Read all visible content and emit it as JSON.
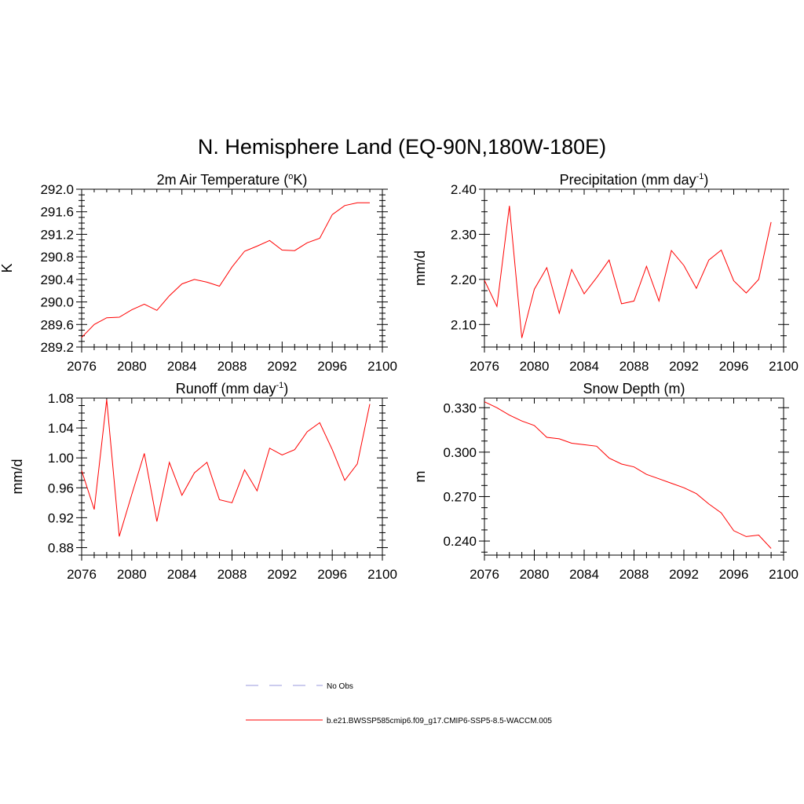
{
  "figure": {
    "title": "N. Hemisphere Land (EQ-90N,180W-180E)"
  },
  "legend": {
    "entries": [
      {
        "label": "No Obs",
        "color": "#9999dd",
        "dash": true
      },
      {
        "label": "b.e21.BWSSP585cmip6.f09_g17.CMIP6-SSP5-8.5-WACCM.005",
        "color": "#ff0000",
        "dash": false
      }
    ]
  },
  "chart_data": [
    {
      "type": "line",
      "title": "2m Air Temperature (",
      "title_sup": "o",
      "title_tail": "K)",
      "xlabel": "",
      "ylabel": "K",
      "xlim": [
        2076,
        2100
      ],
      "ylim": [
        289.2,
        292.0
      ],
      "xticks": [
        2076,
        2080,
        2084,
        2088,
        2092,
        2096,
        2100
      ],
      "yticks": [
        "289.2",
        "289.6",
        "290.0",
        "290.4",
        "290.8",
        "291.2",
        "291.6",
        "292.0"
      ],
      "series": [
        {
          "name": "b.e21.BWSSP585cmip6.f09_g17.CMIP6-SSP5-8.5-WACCM.005",
          "color": "#ff0000",
          "x": [
            2076,
            2077,
            2078,
            2079,
            2080,
            2081,
            2082,
            2083,
            2084,
            2085,
            2086,
            2087,
            2088,
            2089,
            2090,
            2091,
            2092,
            2093,
            2094,
            2095,
            2096,
            2097,
            2098,
            2099
          ],
          "y": [
            289.37,
            289.6,
            289.72,
            289.73,
            289.86,
            289.96,
            289.85,
            290.11,
            290.32,
            290.4,
            290.35,
            290.28,
            290.62,
            290.9,
            290.99,
            291.09,
            290.92,
            290.91,
            291.05,
            291.13,
            291.55,
            291.71,
            291.76,
            291.76
          ]
        }
      ]
    },
    {
      "type": "line",
      "title": "Precipitation (mm day",
      "title_sup": "-1",
      "title_tail": ")",
      "xlabel": "",
      "ylabel": "mm/d",
      "xlim": [
        2076,
        2100
      ],
      "ylim": [
        2.05,
        2.4
      ],
      "xticks": [
        2076,
        2080,
        2084,
        2088,
        2092,
        2096,
        2100
      ],
      "yticks": [
        "2.10",
        "2.20",
        "2.30",
        "2.40"
      ],
      "series": [
        {
          "name": "b.e21.BWSSP585cmip6.f09_g17.CMIP6-SSP5-8.5-WACCM.005",
          "color": "#ff0000",
          "x": [
            2076,
            2077,
            2078,
            2079,
            2080,
            2081,
            2082,
            2083,
            2084,
            2085,
            2086,
            2087,
            2088,
            2089,
            2090,
            2091,
            2092,
            2093,
            2094,
            2095,
            2096,
            2097,
            2098,
            2099
          ],
          "y": [
            2.198,
            2.14,
            2.363,
            2.07,
            2.178,
            2.226,
            2.125,
            2.222,
            2.168,
            2.204,
            2.243,
            2.146,
            2.152,
            2.229,
            2.152,
            2.264,
            2.231,
            2.18,
            2.243,
            2.265,
            2.197,
            2.17,
            2.2,
            2.327
          ]
        }
      ]
    },
    {
      "type": "line",
      "title": "Runoff (mm day",
      "title_sup": "-1",
      "title_tail": ")",
      "xlabel": "",
      "ylabel": "mm/d",
      "xlim": [
        2076,
        2100
      ],
      "ylim": [
        0.87,
        1.08
      ],
      "xticks": [
        2076,
        2080,
        2084,
        2088,
        2092,
        2096,
        2100
      ],
      "yticks": [
        "0.88",
        "0.92",
        "0.96",
        "1.00",
        "1.04",
        "1.08"
      ],
      "series": [
        {
          "name": "b.e21.BWSSP585cmip6.f09_g17.CMIP6-SSP5-8.5-WACCM.005",
          "color": "#ff0000",
          "x": [
            2076,
            2077,
            2078,
            2079,
            2080,
            2081,
            2082,
            2083,
            2084,
            2085,
            2086,
            2087,
            2088,
            2089,
            2090,
            2091,
            2092,
            2093,
            2094,
            2095,
            2096,
            2097,
            2098,
            2099
          ],
          "y": [
            0.983,
            0.931,
            1.078,
            0.895,
            0.951,
            1.006,
            0.915,
            0.994,
            0.95,
            0.98,
            0.994,
            0.944,
            0.94,
            0.984,
            0.956,
            1.013,
            1.004,
            1.011,
            1.035,
            1.047,
            1.011,
            0.97,
            0.992,
            1.072
          ]
        }
      ]
    },
    {
      "type": "line",
      "title": "Snow Depth (m)",
      "title_sup": "",
      "title_tail": "",
      "xlabel": "",
      "ylabel": "m",
      "xlim": [
        2076,
        2100
      ],
      "ylim": [
        0.2305,
        0.3365
      ],
      "xticks": [
        2076,
        2080,
        2084,
        2088,
        2092,
        2096,
        2100
      ],
      "yticks": [
        "0.240",
        "0.270",
        "0.300",
        "0.330"
      ],
      "series": [
        {
          "name": "b.e21.BWSSP585cmip6.f09_g17.CMIP6-SSP5-8.5-WACCM.005",
          "color": "#ff0000",
          "x": [
            2076,
            2077,
            2078,
            2079,
            2080,
            2081,
            2082,
            2083,
            2084,
            2085,
            2086,
            2087,
            2088,
            2089,
            2090,
            2091,
            2092,
            2093,
            2094,
            2095,
            2096,
            2097,
            2098,
            2099
          ],
          "y": [
            0.334,
            0.33,
            0.325,
            0.321,
            0.318,
            0.31,
            0.309,
            0.306,
            0.305,
            0.304,
            0.296,
            0.292,
            0.29,
            0.285,
            0.282,
            0.279,
            0.276,
            0.272,
            0.265,
            0.259,
            0.247,
            0.243,
            0.244,
            0.235
          ]
        }
      ]
    }
  ]
}
